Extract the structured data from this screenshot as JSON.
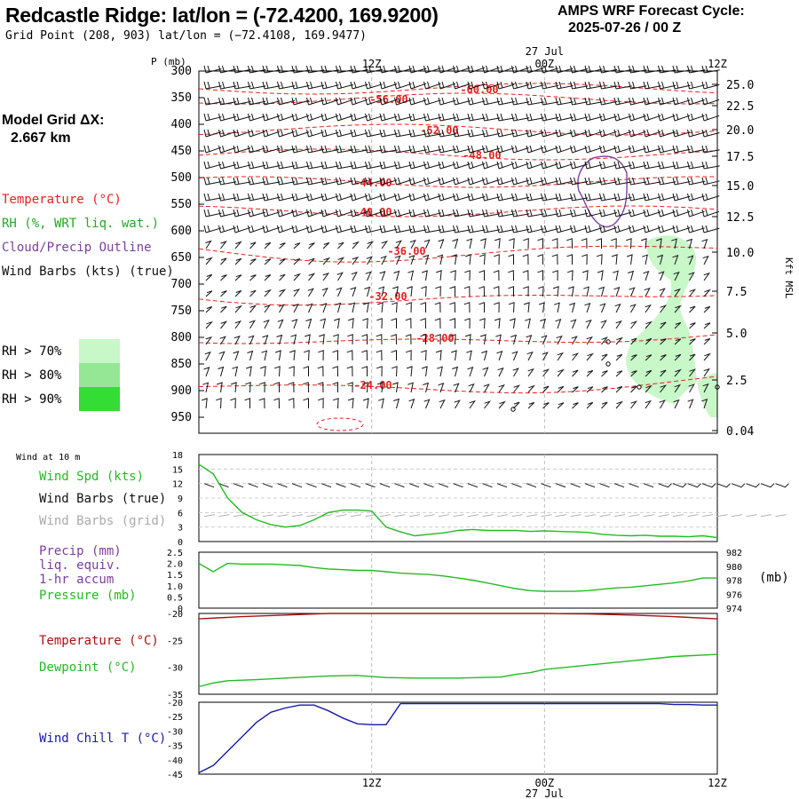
{
  "header": {
    "title": "Redcastle Ridge:  lat/lon = (-72.4200, 169.9200)",
    "subtitle": "Grid Point (208, 903) lat/lon = (−72.4108, 169.9477)",
    "cycle_line1": "AMPS WRF Forecast Cycle:",
    "cycle_line2": "2025-07-26 / 00  Z"
  },
  "time_axis": {
    "top_labels": [
      "12Z",
      "00Z",
      "12Z"
    ],
    "date_label": "27 Jul",
    "bottom_labels": [
      "12Z",
      "00Z",
      "12Z"
    ]
  },
  "legend": {
    "grid_title": "Model Grid ΔX:",
    "grid_value": "2.667 km",
    "temperature": "Temperature (°C)",
    "rh": "RH (%, WRT liq. wat.)",
    "cloud": "Cloud/Precip Outline",
    "wind": "Wind Barbs (kts) (true)",
    "rh70": "RH > 70%",
    "rh80": "RH > 80%",
    "rh90": "RH > 90%",
    "color_temp": "#e8201f",
    "color_rh": "#22aa22",
    "color_cloud": "#7b3f9e",
    "color_wind": "#111111",
    "color_rh70": "#c8f7c8",
    "color_rh80": "#95e695",
    "color_rh90": "#33dd33"
  },
  "panel_labels": {
    "wind10": "Wind at 10 m",
    "wind_spd": "Wind Spd (kts)",
    "wind_barbs_true": "Wind Barbs (true)",
    "wind_barbs_grid": "Wind Barbs (grid)",
    "precip1": "Precip (mm)",
    "precip2": "liq. equiv.",
    "precip3": "1-hr accum",
    "pressure": "Pressure (mb)",
    "mb_unit": "(mb)",
    "temperature": "Temperature (°C)",
    "dewpoint": "Dewpoint (°C)",
    "windchill": "Wind Chill T (°C)",
    "color_windspd": "#22bb22",
    "color_precip": "#7b3f9e",
    "color_pressure": "#22bb22",
    "color_grid_barb": "#aaaaaa",
    "color_temp": "#aa1111",
    "color_dew": "#22bb22",
    "color_chill": "#1a1aaa"
  },
  "chart_data": [
    {
      "type": "contour",
      "panel": "sounding",
      "xlabel": "",
      "ylabel": "P (mb)",
      "y_ticks_left": [
        "300",
        "350",
        "400",
        "450",
        "500",
        "550",
        "600",
        "650",
        "700",
        "750",
        "800",
        "850",
        "900",
        "950"
      ],
      "y_ticks_right": [
        "25.0",
        "22.5",
        "20.0",
        "17.5",
        "15.0",
        "12.5",
        "10.0",
        "7.5",
        "5.0",
        "2.5",
        "0.04"
      ],
      "y_right_label": "Kft MSL",
      "temperature_contours": [
        {
          "label": "-60.00",
          "values": [
            -60
          ]
        },
        {
          "label": "-56.00",
          "values": [
            -56
          ]
        },
        {
          "label": "-52.00",
          "values": [
            -52
          ]
        },
        {
          "label": "-48.00",
          "values": [
            -48
          ]
        },
        {
          "label": "-44.00",
          "values": [
            -44
          ]
        },
        {
          "label": "-40.00",
          "values": [
            -40
          ]
        },
        {
          "label": "-36.00",
          "values": [
            -36
          ]
        },
        {
          "label": "-32.00",
          "values": [
            -32
          ]
        },
        {
          "label": "-28.00",
          "values": [
            -28
          ]
        },
        {
          "label": "-24.00",
          "values": [
            -24
          ]
        }
      ],
      "x_time_hours": [
        0,
        36
      ],
      "ylim": [
        980,
        300
      ]
    },
    {
      "type": "line",
      "panel": "wind10m",
      "ylim": [
        0,
        18
      ],
      "y_ticks": [
        "0",
        "3",
        "6",
        "9",
        "12",
        "15",
        "18"
      ],
      "series": [
        {
          "name": "Wind Spd (kts)",
          "x": [
            0,
            1,
            2,
            3,
            4,
            5,
            6,
            7,
            8,
            9,
            10,
            11,
            12,
            13,
            14,
            15,
            16,
            17,
            18,
            19,
            20,
            21,
            22,
            23,
            24,
            25,
            26,
            27,
            28,
            29,
            30,
            31,
            32,
            33,
            34,
            35,
            36
          ],
          "values": [
            16,
            14,
            9,
            6,
            4.5,
            3.5,
            3,
            3.3,
            4.5,
            6,
            6.5,
            6.5,
            6.3,
            3,
            2,
            1.2,
            1.5,
            1.8,
            2.3,
            2.5,
            2.3,
            2.3,
            2.3,
            2.1,
            2.2,
            2.1,
            2,
            1.9,
            1.5,
            1.3,
            1.2,
            1.3,
            1.1,
            1.1,
            1.0,
            1.2,
            0.8
          ]
        }
      ]
    },
    {
      "type": "line",
      "panel": "precip_pressure",
      "ylim_left": [
        0,
        2.5
      ],
      "y_ticks_left": [
        "0",
        "0.5",
        "1.0",
        "1.5",
        "2.0",
        "2.5"
      ],
      "ylim_right": [
        974,
        982
      ],
      "y_ticks_right": [
        "974",
        "976",
        "978",
        "980",
        "982"
      ],
      "series": [
        {
          "name": "Pressure (mb)",
          "x": [
            0,
            1,
            2,
            3,
            4,
            5,
            6,
            7,
            8,
            9,
            10,
            11,
            12,
            13,
            14,
            15,
            16,
            17,
            18,
            19,
            20,
            21,
            22,
            23,
            24,
            25,
            26,
            27,
            28,
            29,
            30,
            31,
            32,
            33,
            34,
            35,
            36
          ],
          "values": [
            980.4,
            979.2,
            980.4,
            980.3,
            980.3,
            980.3,
            980.2,
            980.1,
            979.8,
            979.6,
            979.5,
            979.4,
            979.4,
            979.2,
            979.0,
            978.9,
            978.8,
            978.6,
            978.3,
            978.0,
            977.6,
            977.2,
            976.8,
            976.5,
            976.4,
            976.4,
            976.4,
            976.5,
            976.7,
            976.9,
            977.0,
            977.2,
            977.4,
            977.6,
            977.9,
            978.3,
            978.3
          ]
        }
      ]
    },
    {
      "type": "line",
      "panel": "temp_dew",
      "ylim": [
        -35,
        -20
      ],
      "y_ticks": [
        "-20",
        "-25",
        "-30",
        "-35"
      ],
      "series": [
        {
          "name": "Temperature (°C)",
          "x": [
            0,
            3,
            6,
            9,
            12,
            15,
            18,
            21,
            24,
            27,
            30,
            33,
            36
          ],
          "values": [
            -21.0,
            -20.6,
            -20.3,
            -20.0,
            -20.0,
            -20.0,
            -20.0,
            -20.0,
            -20.0,
            -20.1,
            -20.3,
            -20.6,
            -21.0
          ]
        },
        {
          "name": "Dewpoint (°C)",
          "x": [
            0,
            1,
            2,
            4,
            6,
            9,
            11,
            13,
            15,
            18,
            21,
            22,
            23,
            24,
            27,
            30,
            33,
            36
          ],
          "values": [
            -33.6,
            -32.9,
            -32.5,
            -32.3,
            -32.0,
            -31.6,
            -31.5,
            -31.9,
            -32.0,
            -32.0,
            -31.8,
            -31.3,
            -31.0,
            -30.4,
            -29.6,
            -28.8,
            -28.0,
            -27.6
          ]
        }
      ]
    },
    {
      "type": "line",
      "panel": "windchill",
      "ylim": [
        -45,
        -20
      ],
      "y_ticks": [
        "-20",
        "-25",
        "-30",
        "-35",
        "-40",
        "-45"
      ],
      "series": [
        {
          "name": "Wind Chill T (°C)",
          "x": [
            0,
            1,
            2,
            3,
            4,
            5,
            6,
            7,
            8,
            9,
            10,
            11,
            12,
            13,
            14,
            15,
            16,
            17,
            18,
            19,
            20,
            21,
            22,
            23,
            24,
            25,
            26,
            27,
            28,
            29,
            30,
            31,
            32,
            33,
            34,
            35,
            36
          ],
          "values": [
            -44.5,
            -42,
            -37,
            -32,
            -27,
            -23.5,
            -22,
            -21,
            -21,
            -23,
            -25.5,
            -27.5,
            -27.8,
            -27.8,
            -20.5,
            -20.5,
            -20.5,
            -20.5,
            -20.5,
            -20.5,
            -20.5,
            -20.5,
            -20.5,
            -20.5,
            -20.5,
            -20.5,
            -20.5,
            -20.5,
            -20.5,
            -20.5,
            -20.5,
            -20.5,
            -20.5,
            -20.8,
            -20.8,
            -21,
            -21
          ]
        }
      ]
    }
  ]
}
